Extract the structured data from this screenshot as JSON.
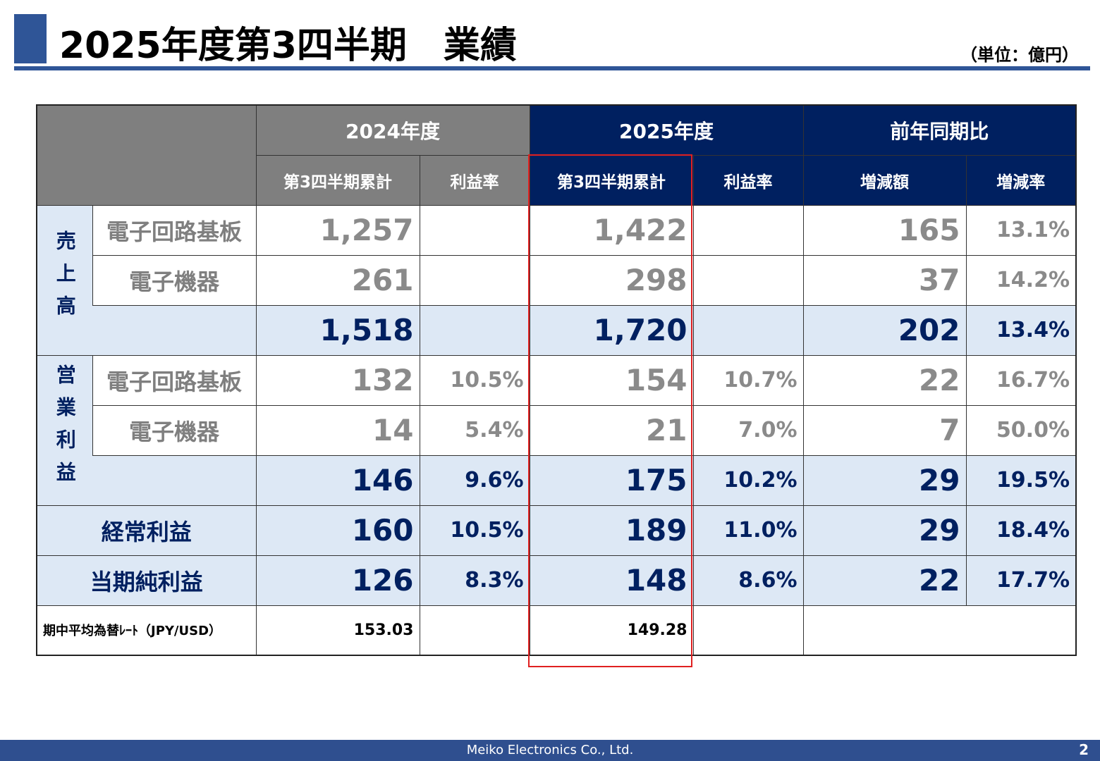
{
  "header": {
    "title": "2025年度第3四半期　業績",
    "unit": "（単位：億円）"
  },
  "table": {
    "group_headers": [
      "2024年度",
      "2025年度",
      "前年同期比"
    ],
    "sub_headers": [
      "第3四半期累計",
      "利益率",
      "第3四半期累計",
      "利益率",
      "増減額",
      "増減率"
    ],
    "body": [
      {
        "label": "売上高",
        "rows": [
          {
            "label": "電子回路基板",
            "values": [
              "1,257",
              null,
              "1,422",
              null,
              "165",
              "13.1%"
            ]
          },
          {
            "label": "電子機器",
            "values": [
              "261",
              null,
              "298",
              null,
              "37",
              "14.2%"
            ]
          },
          {
            "label": null,
            "values": [
              "1,518",
              null,
              "1,720",
              null,
              "202",
              "13.4%"
            ]
          }
        ]
      },
      {
        "label": "営業利益",
        "rows": [
          {
            "label": "電子回路基板",
            "values": [
              "132",
              "10.5%",
              "154",
              "10.7%",
              "22",
              "16.7%"
            ]
          },
          {
            "label": "電子機器",
            "values": [
              "14",
              "5.4%",
              "21",
              "7.0%",
              "7",
              "50.0%"
            ]
          },
          {
            "label": null,
            "values": [
              "146",
              "9.6%",
              "175",
              "10.2%",
              "29",
              "19.5%"
            ]
          }
        ]
      },
      {
        "label": "経常利益",
        "values": [
          "160",
          "10.5%",
          "189",
          "11.0%",
          "29",
          "18.4%"
        ]
      },
      {
        "label": "当期純利益",
        "values": [
          "126",
          "8.3%",
          "148",
          "8.6%",
          "22",
          "17.7%"
        ]
      },
      {
        "label": "期中平均為替ﾚｰﾄ（JPY/USD）",
        "values": [
          "153.03",
          null,
          "149.28",
          null,
          null,
          null
        ]
      }
    ]
  },
  "footer": {
    "company": "Meiko Electronics Co., Ltd.",
    "page": "2"
  }
}
